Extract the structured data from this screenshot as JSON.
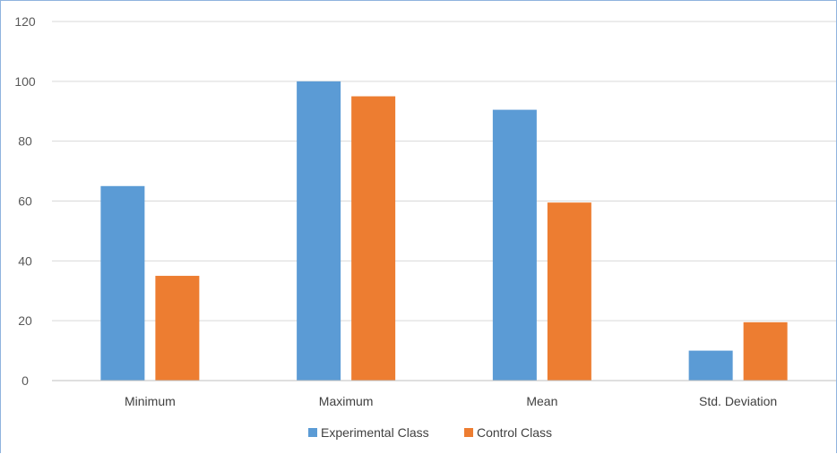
{
  "chart_data": {
    "type": "bar",
    "categories": [
      "Minimum",
      "Maximum",
      "Mean",
      "Std. Deviation"
    ],
    "series": [
      {
        "name": "Experimental Class",
        "color": "#5b9bd5",
        "values": [
          65,
          100,
          90.5,
          10
        ]
      },
      {
        "name": "Control Class",
        "color": "#ed7d31",
        "values": [
          35,
          95,
          59.5,
          19.5
        ]
      }
    ],
    "yticks": [
      0,
      20,
      40,
      60,
      80,
      100,
      120
    ],
    "ylim": [
      0,
      120
    ],
    "grid": true,
    "legend_position": "bottom",
    "title": "",
    "xlabel": "",
    "ylabel": ""
  }
}
